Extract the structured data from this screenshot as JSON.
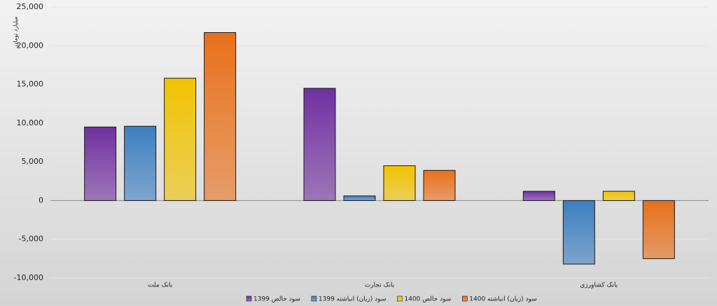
{
  "chart_data": {
    "type": "bar",
    "y_label": "میلیارد تومان",
    "categories": [
      "بانک ملت",
      "بانک تجارت",
      "بانک کشاورزی"
    ],
    "series": [
      {
        "name": "سود خالص 1399",
        "color": "#7030a0",
        "values": [
          9500,
          14500,
          1200
        ]
      },
      {
        "name": "سود (زیان) انباشته 1399",
        "color": "#3d7fc1",
        "values": [
          9600,
          600,
          -8200
        ]
      },
      {
        "name": "سود خالص 1400",
        "color": "#f2c200",
        "values": [
          15800,
          4500,
          1200
        ]
      },
      {
        "name": "سود (زیان) انباشته 1400",
        "color": "#e8701a",
        "values": [
          21700,
          3900,
          -7500
        ]
      }
    ],
    "ylim": [
      -10000,
      25000
    ],
    "yticks": [
      {
        "value": -10000,
        "label": "-10,000"
      },
      {
        "value": -5000,
        "label": "-5,000"
      },
      0,
      {
        "value": 5000,
        "label": "5,000"
      },
      {
        "value": 10000,
        "label": "10,000"
      },
      {
        "value": 15000,
        "label": "15,000"
      },
      {
        "value": 20000,
        "label": "20,000"
      },
      {
        "value": 25000,
        "label": "25,000"
      }
    ],
    "grid": true
  }
}
